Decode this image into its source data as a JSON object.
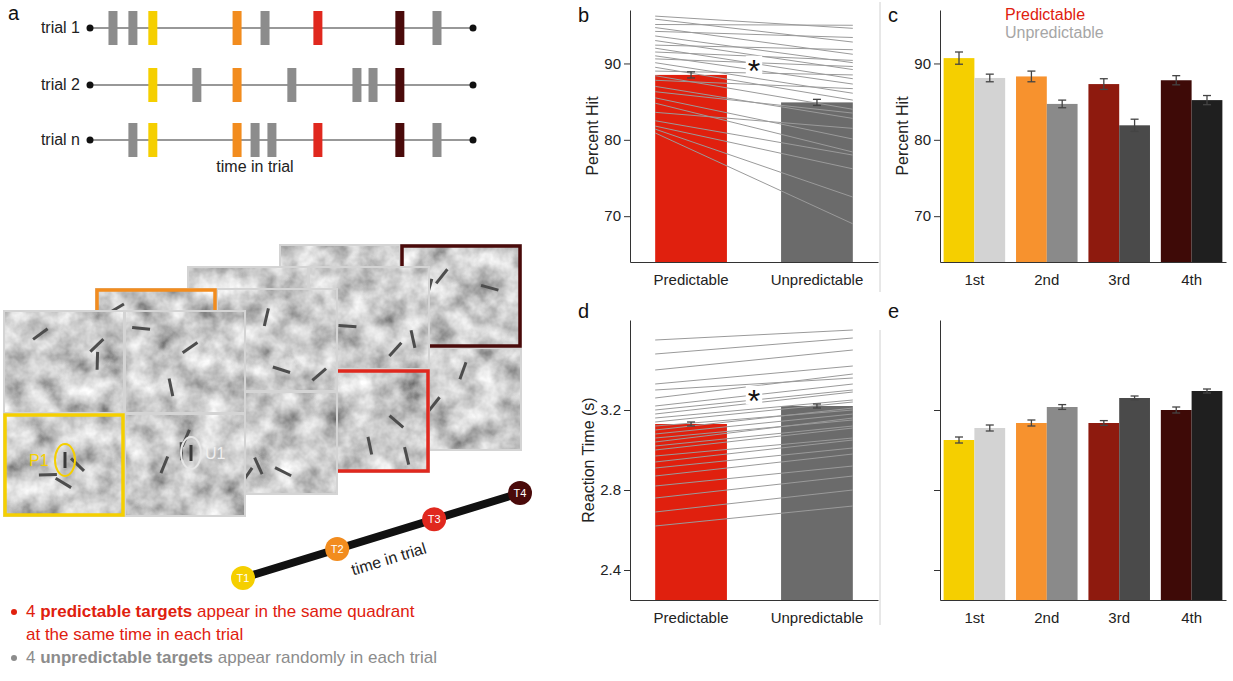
{
  "chart_data": [
    {
      "type": "bar",
      "label": "b",
      "categories": [
        "Predictable",
        "Unpredictable"
      ],
      "values": [
        88.5,
        84.9
      ],
      "errors": [
        0.4,
        0.4
      ],
      "colors": [
        "#e0200e",
        "#6b6b6b"
      ],
      "ylabel": "Percent Hit",
      "ylim": [
        64,
        97
      ],
      "yticks": [
        70,
        80,
        90
      ],
      "subjects": {
        "predictable": [
          96.2,
          95.8,
          95.1,
          94.7,
          94.2,
          93.6,
          93.0,
          92.4,
          92.0,
          91.5,
          91.0,
          90.6,
          90.1,
          89.5,
          89.0,
          88.4,
          87.8,
          87.0,
          86.3,
          85.5,
          84.8,
          83.6,
          82.5,
          81.8,
          81.4,
          80.9
        ],
        "unpredictable": [
          94.6,
          92.8,
          95.0,
          91.2,
          93.4,
          90.1,
          89.2,
          91.8,
          88.0,
          90.4,
          87.3,
          89.6,
          86.1,
          85.2,
          88.5,
          84.0,
          86.7,
          82.8,
          83.5,
          80.1,
          78.4,
          81.5,
          78.0,
          76.2,
          72.5,
          69.0
        ]
      },
      "annotation": "*"
    },
    {
      "type": "bar",
      "label": "c",
      "categories": [
        "1st",
        "2nd",
        "3rd",
        "4th"
      ],
      "series": [
        {
          "name": "Predictable",
          "color": "#e0200e",
          "colors": [
            "#f5cf00",
            "#f7922e",
            "#8e1a0e",
            "#3e0a07"
          ],
          "values": [
            90.7,
            88.3,
            87.3,
            87.8
          ],
          "errors": [
            0.8,
            0.7,
            0.7,
            0.6
          ]
        },
        {
          "name": "Unpredictable",
          "color": "#a6a6a6",
          "colors": [
            "#d3d3d3",
            "#8a8a8a",
            "#4a4a4a",
            "#1f1f1f"
          ],
          "values": [
            88.1,
            84.7,
            81.9,
            85.2
          ],
          "errors": [
            0.5,
            0.5,
            0.8,
            0.6
          ]
        }
      ],
      "ylabel": "Percent Hit",
      "ylim": [
        64,
        97
      ],
      "yticks": [
        70,
        80,
        90
      ],
      "legend": "top-left"
    },
    {
      "type": "bar",
      "label": "d",
      "categories": [
        "Predictable",
        "Unpredictable"
      ],
      "values": [
        3.13,
        3.22
      ],
      "errors": [
        0.01,
        0.01
      ],
      "colors": [
        "#e0200e",
        "#6b6b6b"
      ],
      "ylabel": "Reaction Time (s)",
      "ylim": [
        2.25,
        3.65
      ],
      "yticks": [
        2.4,
        2.8,
        3.2
      ],
      "subjects": {
        "predictable": [
          3.55,
          3.48,
          3.4,
          3.33,
          3.3,
          3.26,
          3.22,
          3.2,
          3.18,
          3.16,
          3.14,
          3.12,
          3.1,
          3.08,
          3.06,
          3.04,
          3.02,
          3.0,
          2.97,
          2.94,
          2.91,
          2.87,
          2.82,
          2.76,
          2.69,
          2.62
        ],
        "unpredictable": [
          3.6,
          3.56,
          3.5,
          3.42,
          3.36,
          3.38,
          3.33,
          3.3,
          3.29,
          3.25,
          3.24,
          3.2,
          3.21,
          3.18,
          3.15,
          3.16,
          3.12,
          3.11,
          3.06,
          3.05,
          3.01,
          2.98,
          2.92,
          2.87,
          2.8,
          2.72
        ]
      },
      "annotation": "*"
    },
    {
      "type": "bar",
      "label": "e",
      "categories": [
        "1st",
        "2nd",
        "3rd",
        "4th"
      ],
      "series": [
        {
          "name": "Predictable",
          "color": "#e0200e",
          "colors": [
            "#f5cf00",
            "#f7922e",
            "#8e1a0e",
            "#3e0a07"
          ],
          "values": [
            3.05,
            3.135,
            3.135,
            3.2
          ],
          "errors": [
            0.015,
            0.015,
            0.012,
            0.015
          ]
        },
        {
          "name": "Unpredictable",
          "color": "#a6a6a6",
          "colors": [
            "#d3d3d3",
            "#8a8a8a",
            "#4a4a4a",
            "#1f1f1f"
          ],
          "values": [
            3.11,
            3.215,
            3.26,
            3.295
          ],
          "errors": [
            0.015,
            0.012,
            0.01,
            0.01
          ]
        }
      ],
      "ylim": [
        2.25,
        3.65
      ],
      "yticks": [
        2.4,
        2.8,
        3.2
      ],
      "tick_labels": "x"
    }
  ],
  "diagram": {
    "label": "a",
    "trials": [
      "trial 1",
      "trial 2",
      "trial n"
    ],
    "timeline_label": "time in trial",
    "target_labels": [
      "P1",
      "U1"
    ],
    "time_points": [
      "T1",
      "T2",
      "T3",
      "T4"
    ],
    "time_point_colors": [
      "#f5cf00",
      "#f28c1e",
      "#e0281e",
      "#4a0a0a"
    ],
    "unpredictable_color": "#8c8c8c",
    "axis_label": "time in trial",
    "notes": [
      {
        "color": "#e0200e",
        "before": "4 ",
        "emphasis": "predictable targets",
        "after": " appear in the same quadrant",
        "continued": "at the same time in each trial"
      },
      {
        "color": "#8c8c8c",
        "before": "4 ",
        "emphasis": "unpredictable targets",
        "after": " appear randomly in each trial"
      }
    ]
  }
}
